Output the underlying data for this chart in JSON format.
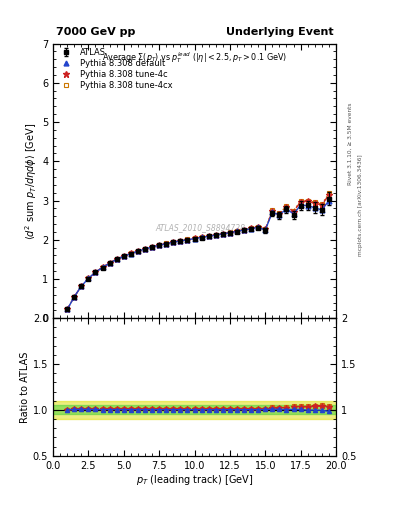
{
  "title_left": "7000 GeV pp",
  "title_right": "Underlying Event",
  "plot_title": "Average $\\Sigma(p_T)$ vs $p_T^{lead}$ ($|\\eta| < 2.5, p_T > 0.1$ GeV)",
  "xlabel": "$p_T$ (leading track) [GeV]",
  "ylabel_main": "$\\langle d^2$ sum $p_T/d\\eta d\\phi\\rangle$ [GeV]",
  "ylabel_ratio": "Ratio to ATLAS",
  "right_label1": "Rivet 3.1.10, ≥ 3.5M events",
  "right_label2": "mcplots.cern.ch [arXiv:1306.3436]",
  "watermark": "ATLAS_2010_S8894728",
  "xlim": [
    0,
    20
  ],
  "ylim_main": [
    0,
    7
  ],
  "ylim_ratio": [
    0.5,
    2.0
  ],
  "data_x": [
    1.0,
    1.5,
    2.0,
    2.5,
    3.0,
    3.5,
    4.0,
    4.5,
    5.0,
    5.5,
    6.0,
    6.5,
    7.0,
    7.5,
    8.0,
    8.5,
    9.0,
    9.5,
    10.0,
    10.5,
    11.0,
    11.5,
    12.0,
    12.5,
    13.0,
    13.5,
    14.0,
    14.5,
    15.0,
    15.5,
    16.0,
    16.5,
    17.0,
    17.5,
    18.0,
    18.5,
    19.0,
    19.5
  ],
  "atlas_y": [
    0.225,
    0.545,
    0.815,
    1.01,
    1.17,
    1.29,
    1.4,
    1.5,
    1.575,
    1.645,
    1.705,
    1.76,
    1.81,
    1.855,
    1.895,
    1.935,
    1.965,
    1.995,
    2.025,
    2.055,
    2.085,
    2.115,
    2.145,
    2.175,
    2.21,
    2.245,
    2.28,
    2.31,
    2.24,
    2.68,
    2.62,
    2.78,
    2.64,
    2.87,
    2.88,
    2.82,
    2.77,
    3.05
  ],
  "atlas_yerr": [
    0.01,
    0.015,
    0.015,
    0.015,
    0.015,
    0.015,
    0.015,
    0.015,
    0.015,
    0.015,
    0.015,
    0.015,
    0.015,
    0.015,
    0.015,
    0.015,
    0.015,
    0.015,
    0.02,
    0.02,
    0.02,
    0.02,
    0.025,
    0.025,
    0.03,
    0.03,
    0.035,
    0.04,
    0.055,
    0.065,
    0.08,
    0.09,
    0.1,
    0.11,
    0.12,
    0.13,
    0.14,
    0.16
  ],
  "default_y": [
    0.225,
    0.548,
    0.82,
    1.015,
    1.175,
    1.295,
    1.405,
    1.505,
    1.58,
    1.65,
    1.71,
    1.765,
    1.815,
    1.86,
    1.9,
    1.94,
    1.97,
    2.0,
    2.03,
    2.06,
    2.09,
    2.12,
    2.15,
    2.18,
    2.215,
    2.25,
    2.285,
    2.315,
    2.25,
    2.7,
    2.635,
    2.79,
    2.655,
    2.885,
    2.87,
    2.815,
    2.76,
    3.0
  ],
  "tune4c_y": [
    0.225,
    0.548,
    0.82,
    1.015,
    1.175,
    1.3,
    1.41,
    1.51,
    1.585,
    1.655,
    1.715,
    1.77,
    1.82,
    1.865,
    1.905,
    1.945,
    1.975,
    2.005,
    2.035,
    2.065,
    2.095,
    2.125,
    2.155,
    2.185,
    2.22,
    2.255,
    2.29,
    2.32,
    2.265,
    2.73,
    2.66,
    2.84,
    2.72,
    2.97,
    2.98,
    2.93,
    2.885,
    3.15
  ],
  "tune4cx_y": [
    0.225,
    0.548,
    0.82,
    1.015,
    1.175,
    1.3,
    1.41,
    1.51,
    1.585,
    1.655,
    1.715,
    1.77,
    1.82,
    1.865,
    1.91,
    1.95,
    1.98,
    2.01,
    2.04,
    2.07,
    2.1,
    2.13,
    2.16,
    2.19,
    2.225,
    2.26,
    2.295,
    2.325,
    2.27,
    2.75,
    2.675,
    2.86,
    2.745,
    2.99,
    3.0,
    2.95,
    2.91,
    3.18
  ],
  "atlas_color": "#000000",
  "default_color": "#2244cc",
  "tune4c_color": "#cc2222",
  "tune4cx_color": "#cc7700",
  "band_green": "#33cc33",
  "band_yellow": "#dddd00",
  "band_green_alpha": 0.45,
  "band_yellow_alpha": 0.5,
  "green_band_half": 0.05,
  "yellow_band_half": 0.1
}
